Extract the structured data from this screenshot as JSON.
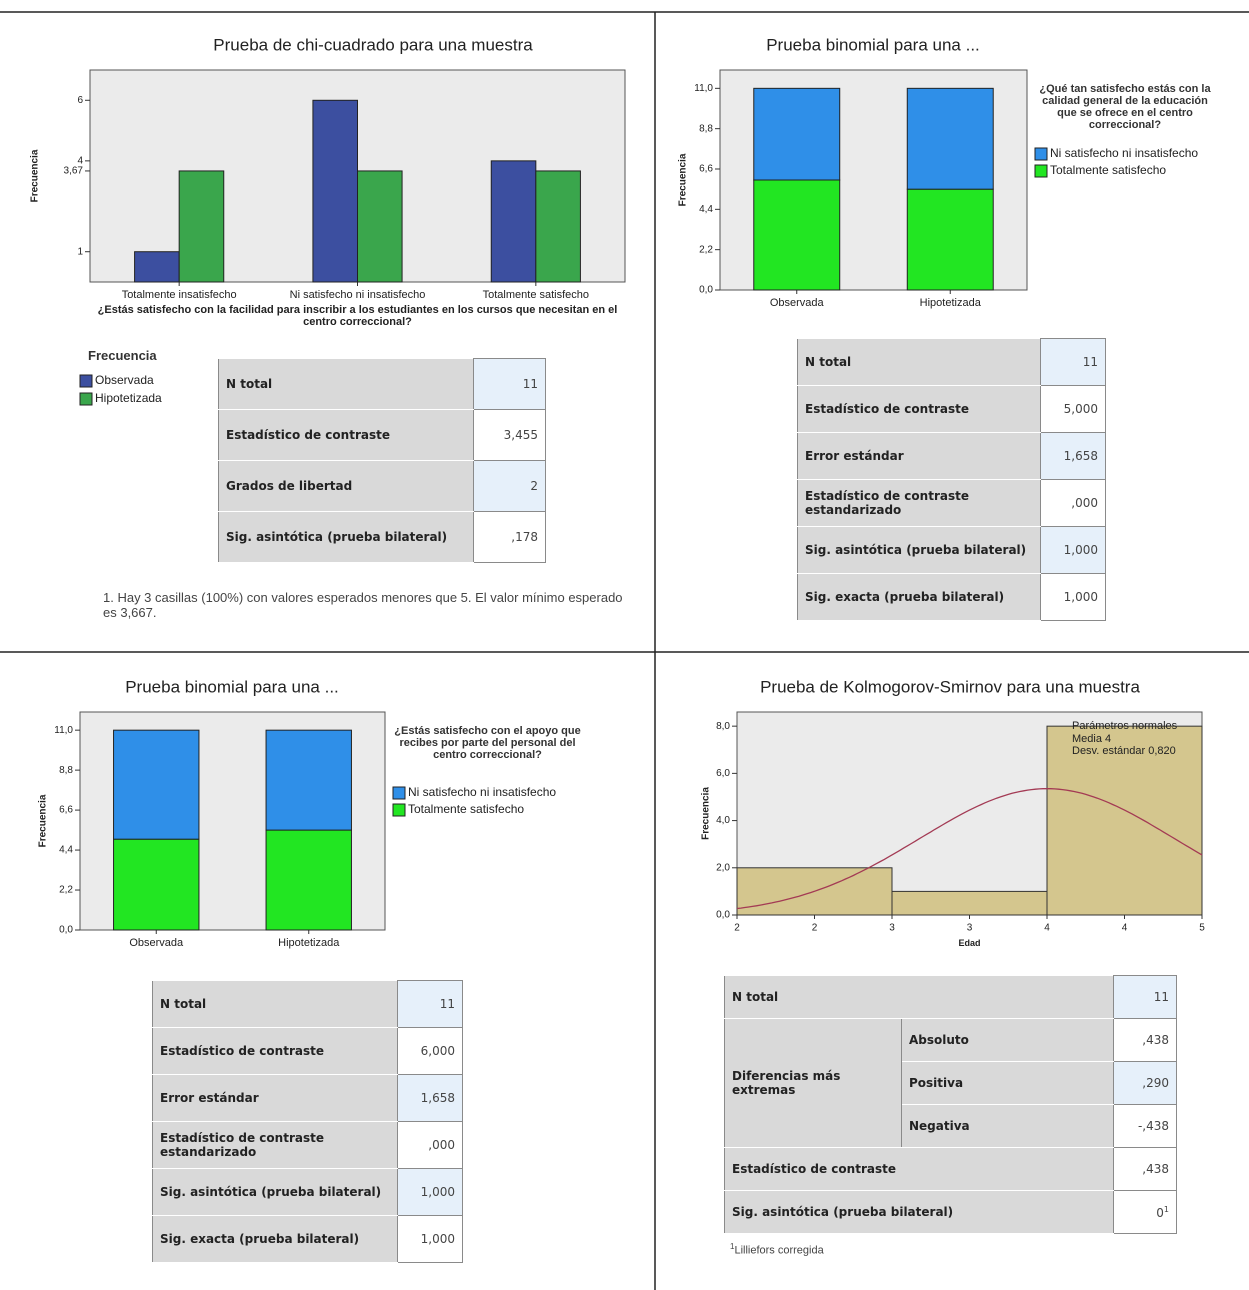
{
  "chart_data": [
    {
      "type": "bar",
      "title": "Prueba de chi-cuadrado para una muestra",
      "ylabel": "Frecuencia",
      "xlabel": "¿Estás satisfecho con la facilidad para inscribir a los estudiantes en los cursos que necesitan en el centro correccional?",
      "categories": [
        "Totalmente insatisfecho",
        "Ni satisfecho ni insatisfecho",
        "Totalmente satisfecho"
      ],
      "series": [
        {
          "name": "Observada",
          "color": "#3c4fa0",
          "values": [
            1,
            6,
            4
          ]
        },
        {
          "name": "Hipotetizada",
          "color": "#3aa64c",
          "values": [
            3.667,
            3.667,
            3.667
          ]
        }
      ],
      "ylim": [
        0,
        7
      ],
      "yticks": [
        1,
        {
          "value": 3.667,
          "label": "3,67"
        },
        4,
        6
      ],
      "legend_title": "Frecuencia",
      "stacked": false
    },
    {
      "type": "bar",
      "title": "Prueba binomial para una ...",
      "ylabel": "Frecuencia",
      "categories": [
        "Observada",
        "Hipotetizada"
      ],
      "series": [
        {
          "name": "Ni satisfecho ni insatisfecho",
          "color": "#2f8fe8",
          "values": [
            5,
            5.5
          ]
        },
        {
          "name": "Totalmente satisfecho",
          "color": "#22e622",
          "values": [
            6,
            5.5
          ]
        }
      ],
      "ylim": [
        0,
        12
      ],
      "yticks": [
        {
          "value": 0,
          "label": "0,0"
        },
        {
          "value": 2.2,
          "label": "2,2"
        },
        {
          "value": 4.4,
          "label": "4,4"
        },
        {
          "value": 6.6,
          "label": "6,6"
        },
        {
          "value": 8.8,
          "label": "8,8"
        },
        {
          "value": 11,
          "label": "11,0"
        }
      ],
      "legend_title": "¿Qué tan satisfecho estás con la calidad general de la educación que se ofrece en el centro correccional?",
      "stacked": true
    },
    {
      "type": "bar",
      "title": "Prueba binomial para una ...",
      "ylabel": "Frecuencia",
      "categories": [
        "Observada",
        "Hipotetizada"
      ],
      "series": [
        {
          "name": "Ni satisfecho ni insatisfecho",
          "color": "#2f8fe8",
          "values": [
            6,
            5.5
          ]
        },
        {
          "name": "Totalmente satisfecho",
          "color": "#22e622",
          "values": [
            5,
            5.5
          ]
        }
      ],
      "ylim": [
        0,
        12
      ],
      "yticks": [
        {
          "value": 0,
          "label": "0,0"
        },
        {
          "value": 2.2,
          "label": "2,2"
        },
        {
          "value": 4.4,
          "label": "4,4"
        },
        {
          "value": 6.6,
          "label": "6,6"
        },
        {
          "value": 8.8,
          "label": "8,8"
        },
        {
          "value": 11,
          "label": "11,0"
        }
      ],
      "legend_title": "¿Estás satisfecho con el apoyo que recibes por parte del personal del centro correccional?",
      "stacked": true
    },
    {
      "type": "histogram",
      "title": "Prueba de Kolmogorov-Smirnov para una muestra",
      "ylabel": "Frecuencia",
      "xlabel": "Edad",
      "bins": [
        2,
        3,
        4,
        5
      ],
      "counts": [
        2,
        1,
        8
      ],
      "color": "#d4c68e",
      "curve_color": "#a33a54",
      "xlim": [
        2,
        5
      ],
      "xticks": [
        2,
        {
          "value": 2.5,
          "label": "2"
        },
        3,
        {
          "value": 3.5,
          "label": "3"
        },
        4,
        {
          "value": 4.5,
          "label": "4"
        },
        5
      ],
      "ylim": [
        0,
        8.6
      ],
      "yticks": [
        {
          "value": 0,
          "label": "0,0"
        },
        {
          "value": 2,
          "label": "2,0"
        },
        {
          "value": 4,
          "label": "4,0"
        },
        {
          "value": 6,
          "label": "6,0"
        },
        {
          "value": 8,
          "label": "8,0"
        }
      ],
      "normal": {
        "title": "Parámetros normales",
        "mean": {
          "value": 4,
          "label": "Media 4"
        },
        "sd": {
          "value": 0.82,
          "label": "Desv. estándar 0,820"
        }
      }
    }
  ],
  "tables": [
    {
      "rows": [
        [
          "N total",
          "11"
        ],
        [
          "Estadístico de contraste",
          "3,455"
        ],
        [
          "Grados de libertad",
          "2"
        ],
        [
          "Sig. asintótica (prueba bilateral)",
          ",178"
        ]
      ],
      "note": "1.  Hay 3 casillas (100%) con valores esperados menores que 5.  El valor mínimo esperado es 3,667."
    },
    {
      "rows": [
        [
          "N total",
          "11"
        ],
        [
          "Estadístico de contraste",
          "5,000"
        ],
        [
          "Error estándar",
          "1,658"
        ],
        [
          "Estadístico de contraste estandarizado",
          ",000"
        ],
        [
          "Sig. asintótica (prueba bilateral)",
          "1,000"
        ],
        [
          "Sig. exacta (prueba bilateral)",
          "1,000"
        ]
      ]
    },
    {
      "rows": [
        [
          "N total",
          "11"
        ],
        [
          "Estadístico de contraste",
          "6,000"
        ],
        [
          "Error estándar",
          "1,658"
        ],
        [
          "Estadístico de contraste estandarizado",
          ",000"
        ],
        [
          "Sig. asintótica (prueba bilateral)",
          "1,000"
        ],
        [
          "Sig. exacta (prueba bilateral)",
          "1,000"
        ]
      ]
    },
    {
      "rows": [
        [
          "N total",
          "11"
        ]
      ],
      "group_label": "Diferencias más extremas",
      "group_rows": [
        [
          "Absoluto",
          ",438"
        ],
        [
          "Positiva",
          ",290"
        ],
        [
          "Negativa",
          "-,438"
        ]
      ],
      "rows_after": [
        [
          "Estadístico de contraste",
          ",438"
        ],
        [
          "Sig. asintótica (prueba bilateral)",
          "0"
        ]
      ],
      "superscript": "1",
      "note": "Lilliefors corregida"
    }
  ]
}
